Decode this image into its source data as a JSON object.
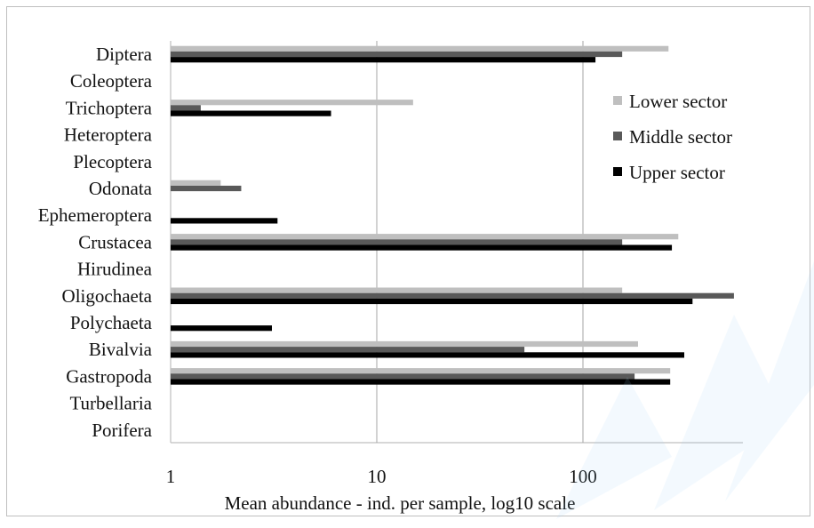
{
  "chart_data": {
    "type": "bar",
    "orientation": "horizontal",
    "scale": "log10",
    "categories": [
      "Diptera",
      "Coleoptera",
      "Trichoptera",
      "Heteroptera",
      "Plecoptera",
      "Odonata",
      "Ephemeroptera",
      "Crustacea",
      "Hirudinea",
      "Oligochaeta",
      "Polychaeta",
      "Bivalvia",
      "Gastropoda",
      "Turbellaria",
      "Porifera"
    ],
    "series": [
      {
        "name": "Lower sector",
        "color": "#bfbfbf",
        "values": [
          260,
          null,
          15,
          null,
          null,
          1.75,
          null,
          290,
          null,
          155,
          null,
          185,
          265,
          null,
          null
        ]
      },
      {
        "name": "Middle sector",
        "color": "#595959",
        "values": [
          155,
          null,
          1.4,
          null,
          null,
          2.2,
          null,
          155,
          null,
          540,
          null,
          52,
          178,
          null,
          null
        ]
      },
      {
        "name": "Upper sector",
        "color": "#000000",
        "values": [
          115,
          null,
          6,
          null,
          null,
          null,
          3.3,
          270,
          null,
          340,
          3.1,
          310,
          265,
          null,
          null
        ]
      }
    ],
    "xlabel": "Mean abundance - ind. per sample, log10 scale",
    "ylabel": "",
    "xlim": [
      1,
      1000
    ],
    "xticks": [
      "1",
      "10",
      "100"
    ],
    "grid": true,
    "legend": "right"
  },
  "colors": {
    "grid": "#a6a6a6",
    "axis": "#bfbfbf",
    "frame": "#bfbfbf",
    "watermark": "#9fd4f7"
  }
}
